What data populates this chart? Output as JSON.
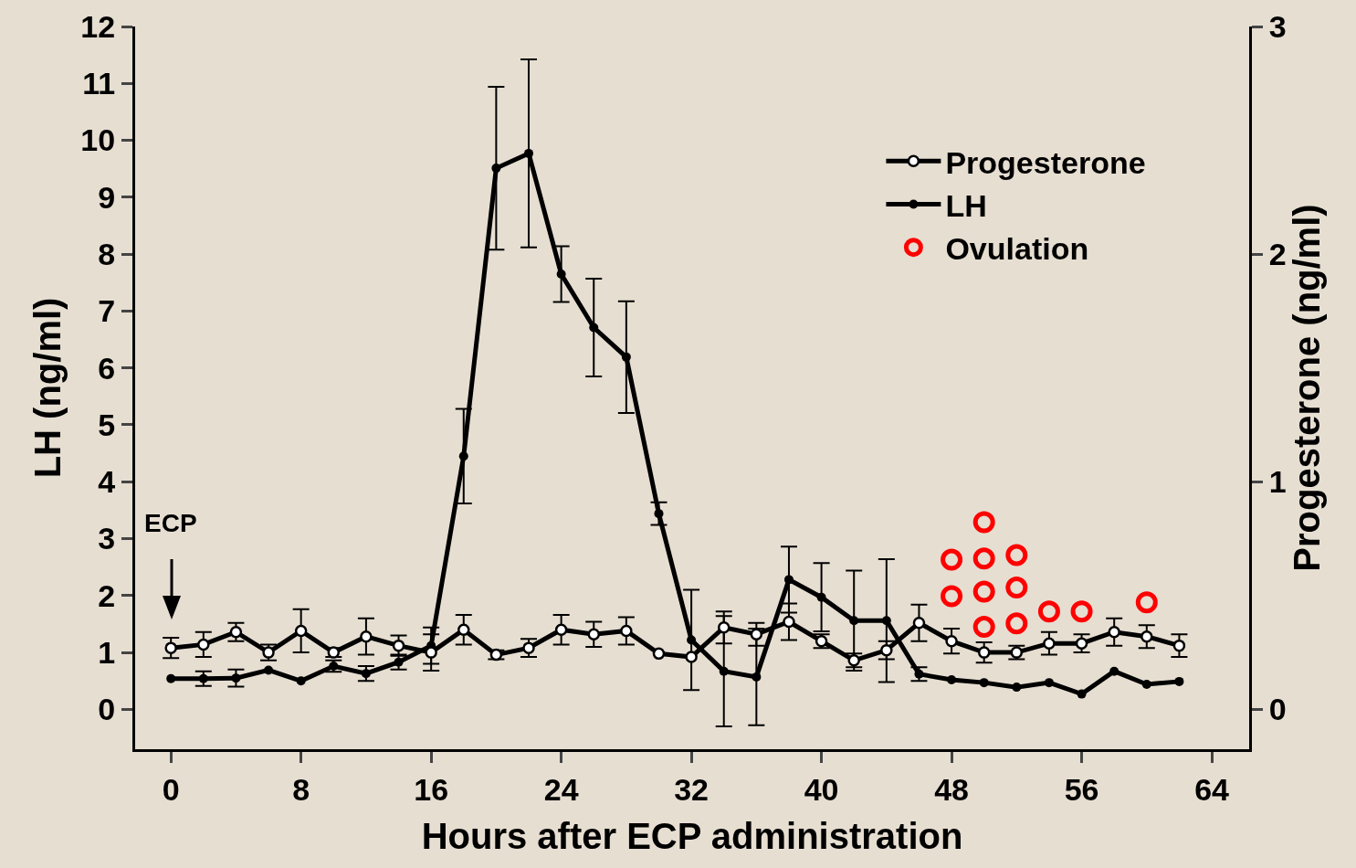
{
  "chart_data": {
    "type": "line",
    "xlabel": "Hours after ECP administration",
    "ylabel": "LH (ng/ml)",
    "y2label": "Progesterone (ng/ml)",
    "x": [
      0,
      2,
      4,
      6,
      8,
      10,
      12,
      14,
      16,
      18,
      20,
      22,
      24,
      26,
      28,
      30,
      32,
      34,
      36,
      38,
      40,
      42,
      44,
      46,
      48,
      50,
      52,
      54,
      56,
      58,
      60,
      62
    ],
    "series": [
      {
        "name": "Progesterone",
        "color": "#000000",
        "axis": "y2",
        "values": [
          0.27,
          0.285,
          0.34,
          0.25,
          0.345,
          0.25,
          0.32,
          0.28,
          0.25,
          0.35,
          0.24,
          0.27,
          0.35,
          0.33,
          0.345,
          0.245,
          0.23,
          0.36,
          0.33,
          0.385,
          0.3,
          0.215,
          0.26,
          0.38,
          0.3,
          0.25,
          0.25,
          0.29,
          0.29,
          0.34,
          0.32,
          0.28
        ],
        "errors": [
          0.045,
          0.055,
          0.04,
          0.035,
          0.095,
          0.02,
          0.08,
          0.045,
          0.08,
          0.065,
          0.02,
          0.04,
          0.065,
          0.055,
          0.06,
          null,
          null,
          0.07,
          0.05,
          0.08,
          0.03,
          0.03,
          0.04,
          0.08,
          0.055,
          0.045,
          0.03,
          0.05,
          0.04,
          0.06,
          0.05,
          0.05
        ]
      },
      {
        "name": "LH",
        "color": "#000000",
        "values": [
          0.54,
          0.54,
          0.55,
          0.69,
          0.5,
          0.76,
          0.63,
          0.83,
          1.12,
          4.45,
          9.51,
          9.77,
          7.65,
          6.71,
          6.19,
          3.44,
          1.22,
          0.67,
          0.57,
          2.28,
          1.97,
          1.56,
          1.56,
          0.62,
          0.52,
          0.47,
          0.39,
          0.47,
          0.27,
          0.67,
          0.44,
          0.49
        ],
        "errors": [
          null,
          0.13,
          0.15,
          null,
          null,
          0.1,
          0.13,
          0.13,
          0.32,
          0.83,
          1.43,
          1.65,
          0.49,
          0.86,
          0.98,
          0.2,
          0.88,
          0.97,
          0.85,
          0.58,
          0.6,
          0.88,
          1.08,
          0.12,
          null,
          null,
          null,
          null,
          null,
          null,
          null,
          null
        ]
      },
      {
        "name": "Ovulation",
        "type": "scatter",
        "color": "#ff0000",
        "x": [
          48,
          48,
          50,
          50,
          50,
          50,
          52,
          52,
          52,
          54,
          56,
          60
        ],
        "values": [
          2.63,
          1.99,
          3.29,
          2.65,
          2.07,
          1.45,
          2.71,
          2.14,
          1.51,
          1.72,
          1.72,
          1.88
        ]
      }
    ],
    "xlim": [
      -2.2,
      66.3
    ],
    "xticks": [
      0,
      8,
      16,
      24,
      32,
      40,
      48,
      56,
      64
    ],
    "ylim": [
      -0.7,
      12
    ],
    "yticks": [
      0,
      1,
      2,
      3,
      4,
      5,
      6,
      7,
      8,
      9,
      10,
      11,
      12
    ],
    "y2lim": [
      -0.175,
      3
    ],
    "y2ticks": [
      0,
      1,
      2,
      3
    ],
    "annotations": [
      "ECP"
    ],
    "legend": "top right",
    "grid": false,
    "marker": "circle",
    "line_style": "solid"
  }
}
